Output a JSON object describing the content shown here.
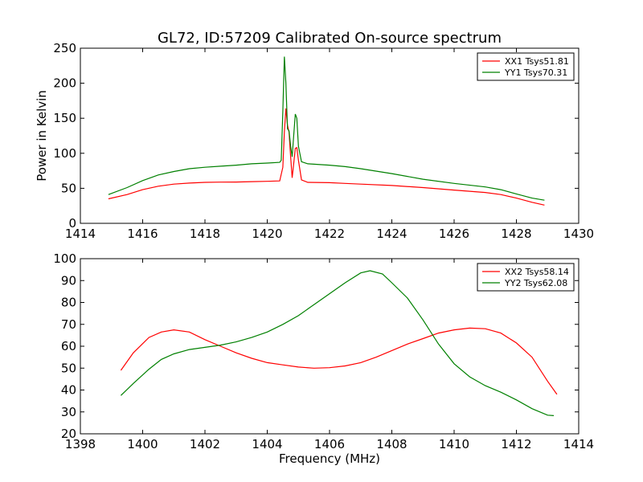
{
  "chart_data": [
    {
      "type": "line",
      "title": "GL72, ID:57209 Calibrated On-source spectrum",
      "xlabel": "",
      "ylabel": "Power in Kelvin",
      "xlim": [
        1414,
        1430
      ],
      "ylim": [
        0,
        250
      ],
      "xticks": [
        1414,
        1416,
        1418,
        1420,
        1422,
        1424,
        1426,
        1428,
        1430
      ],
      "yticks": [
        0,
        50,
        100,
        150,
        200,
        250
      ],
      "grid": false,
      "legend_position": "top-right",
      "series": [
        {
          "name": "XX1 Tsys51.81",
          "color": "#ff0000",
          "points": [
            [
              1414.9,
              35
            ],
            [
              1415.5,
              41
            ],
            [
              1416.0,
              48
            ],
            [
              1416.5,
              53
            ],
            [
              1417.0,
              56
            ],
            [
              1417.5,
              57.5
            ],
            [
              1418.0,
              58.5
            ],
            [
              1418.5,
              58.8
            ],
            [
              1419.0,
              59
            ],
            [
              1419.5,
              59.5
            ],
            [
              1420.0,
              60
            ],
            [
              1420.4,
              60.5
            ],
            [
              1420.5,
              80
            ],
            [
              1420.55,
              130
            ],
            [
              1420.6,
              164
            ],
            [
              1420.65,
              140
            ],
            [
              1420.7,
              130
            ],
            [
              1420.75,
              95
            ],
            [
              1420.8,
              65
            ],
            [
              1420.85,
              85
            ],
            [
              1420.9,
              107
            ],
            [
              1420.95,
              108
            ],
            [
              1421.0,
              90
            ],
            [
              1421.1,
              62
            ],
            [
              1421.3,
              58.5
            ],
            [
              1422.0,
              58
            ],
            [
              1422.5,
              57
            ],
            [
              1423.0,
              56
            ],
            [
              1424.0,
              54
            ],
            [
              1425.0,
              51
            ],
            [
              1426.0,
              47.5
            ],
            [
              1427.0,
              44
            ],
            [
              1427.5,
              41
            ],
            [
              1428.0,
              36
            ],
            [
              1428.5,
              30
            ],
            [
              1428.9,
              26
            ]
          ]
        },
        {
          "name": "YY1 Tsys70.31",
          "color": "#008000",
          "points": [
            [
              1414.9,
              41
            ],
            [
              1415.5,
              51
            ],
            [
              1416.0,
              61
            ],
            [
              1416.5,
              69
            ],
            [
              1417.0,
              74
            ],
            [
              1417.5,
              78
            ],
            [
              1418.0,
              80
            ],
            [
              1418.5,
              81.5
            ],
            [
              1419.0,
              83
            ],
            [
              1419.5,
              85
            ],
            [
              1420.0,
              86
            ],
            [
              1420.4,
              87
            ],
            [
              1420.45,
              90
            ],
            [
              1420.5,
              160
            ],
            [
              1420.55,
              238
            ],
            [
              1420.6,
              200
            ],
            [
              1420.65,
              135
            ],
            [
              1420.7,
              132
            ],
            [
              1420.75,
              110
            ],
            [
              1420.8,
              95
            ],
            [
              1420.85,
              125
            ],
            [
              1420.9,
              156
            ],
            [
              1420.95,
              150
            ],
            [
              1421.0,
              110
            ],
            [
              1421.1,
              88
            ],
            [
              1421.3,
              85
            ],
            [
              1422.0,
              83
            ],
            [
              1422.5,
              81
            ],
            [
              1423.0,
              78
            ],
            [
              1424.0,
              71
            ],
            [
              1425.0,
              63
            ],
            [
              1426.0,
              57
            ],
            [
              1427.0,
              52
            ],
            [
              1427.5,
              48
            ],
            [
              1428.0,
              42
            ],
            [
              1428.5,
              36
            ],
            [
              1428.9,
              33
            ]
          ]
        }
      ]
    },
    {
      "type": "line",
      "title": "",
      "xlabel": "Frequency (MHz)",
      "ylabel": "",
      "xlim": [
        1398,
        1414
      ],
      "ylim": [
        20,
        100
      ],
      "xticks": [
        1398,
        1400,
        1402,
        1404,
        1406,
        1408,
        1410,
        1412,
        1414
      ],
      "yticks": [
        20,
        30,
        40,
        50,
        60,
        70,
        80,
        90,
        100
      ],
      "grid": false,
      "legend_position": "top-right",
      "series": [
        {
          "name": "XX2 Tsys58.14",
          "color": "#ff0000",
          "points": [
            [
              1399.3,
              49
            ],
            [
              1399.7,
              57
            ],
            [
              1400.2,
              64
            ],
            [
              1400.6,
              66.5
            ],
            [
              1401.0,
              67.5
            ],
            [
              1401.5,
              66.5
            ],
            [
              1402.0,
              63
            ],
            [
              1402.5,
              60
            ],
            [
              1403.0,
              57
            ],
            [
              1403.5,
              54.5
            ],
            [
              1404.0,
              52.5
            ],
            [
              1404.5,
              51.5
            ],
            [
              1405.0,
              50.5
            ],
            [
              1405.5,
              50
            ],
            [
              1406.0,
              50.2
            ],
            [
              1406.5,
              51
            ],
            [
              1407.0,
              52.5
            ],
            [
              1407.5,
              55
            ],
            [
              1408.0,
              58
            ],
            [
              1408.5,
              61
            ],
            [
              1409.0,
              63.5
            ],
            [
              1409.5,
              66
            ],
            [
              1410.0,
              67.5
            ],
            [
              1410.5,
              68.3
            ],
            [
              1411.0,
              68
            ],
            [
              1411.5,
              66
            ],
            [
              1412.0,
              61.5
            ],
            [
              1412.5,
              55
            ],
            [
              1413.0,
              44
            ],
            [
              1413.3,
              38
            ]
          ]
        },
        {
          "name": "YY2 Tsys62.08",
          "color": "#008000",
          "points": [
            [
              1399.3,
              37.5
            ],
            [
              1399.7,
              43
            ],
            [
              1400.2,
              49.5
            ],
            [
              1400.6,
              54
            ],
            [
              1401.0,
              56.5
            ],
            [
              1401.5,
              58.5
            ],
            [
              1402.0,
              59.5
            ],
            [
              1402.5,
              60.5
            ],
            [
              1403.0,
              62
            ],
            [
              1403.5,
              64
            ],
            [
              1404.0,
              66.5
            ],
            [
              1404.5,
              70
            ],
            [
              1405.0,
              74
            ],
            [
              1405.5,
              79
            ],
            [
              1406.0,
              84
            ],
            [
              1406.5,
              89
            ],
            [
              1407.0,
              93.5
            ],
            [
              1407.3,
              94.5
            ],
            [
              1407.7,
              93
            ],
            [
              1408.0,
              89
            ],
            [
              1408.5,
              82
            ],
            [
              1409.0,
              72
            ],
            [
              1409.5,
              61
            ],
            [
              1410.0,
              52
            ],
            [
              1410.5,
              46
            ],
            [
              1411.0,
              42
            ],
            [
              1411.5,
              39
            ],
            [
              1412.0,
              35.5
            ],
            [
              1412.5,
              31.5
            ],
            [
              1413.0,
              28.5
            ],
            [
              1413.2,
              28.3
            ]
          ]
        }
      ]
    }
  ]
}
